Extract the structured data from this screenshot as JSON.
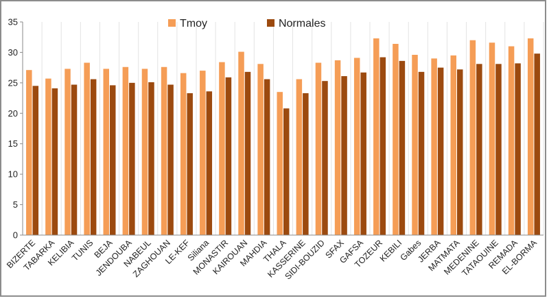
{
  "chart_data": {
    "type": "bar",
    "title": "",
    "xlabel": "",
    "ylabel": "",
    "ylim": [
      0,
      35
    ],
    "yticks": [
      0,
      5,
      10,
      15,
      20,
      25,
      30,
      35
    ],
    "grid": "vertical-category-lines",
    "legend_position": "top-center",
    "categories": [
      "BIZERTE",
      "TABARKA",
      "KELIBIA",
      "TUNIS",
      "BEJA",
      "JENDOUBA",
      "NABEUL",
      "ZAGHOUAN",
      "LE-KEF",
      "Siliana",
      "MONASTIR",
      "KAIROUAN",
      "MAHDIA",
      "THALA",
      "KASSERINE",
      "SIDI-BOUZID",
      "SFAX",
      "GAFSA",
      "TOZEUR",
      "KEBILI",
      "Gabes",
      "JERBA",
      "MATMATA",
      "MEDENINE",
      "TATAOUINE",
      "REMADA",
      "EL-BORMA"
    ],
    "series": [
      {
        "name": "Tmoy",
        "color": "#f59d56",
        "values": [
          27.1,
          25.7,
          27.3,
          28.3,
          27.3,
          27.6,
          27.3,
          27.6,
          26.6,
          27.0,
          28.4,
          30.1,
          28.1,
          23.5,
          25.6,
          28.3,
          28.7,
          29.1,
          32.3,
          31.4,
          29.6,
          29.0,
          29.5,
          32.0,
          31.6,
          31.0,
          32.3
        ]
      },
      {
        "name": "Normales",
        "color": "#9c4a0f",
        "values": [
          24.5,
          24.1,
          24.7,
          25.6,
          24.6,
          25.0,
          25.1,
          24.7,
          23.3,
          23.6,
          25.9,
          26.8,
          25.6,
          20.8,
          23.3,
          25.3,
          26.1,
          26.7,
          29.2,
          28.6,
          26.8,
          27.5,
          27.2,
          28.1,
          28.1,
          28.2,
          29.8
        ]
      }
    ]
  }
}
